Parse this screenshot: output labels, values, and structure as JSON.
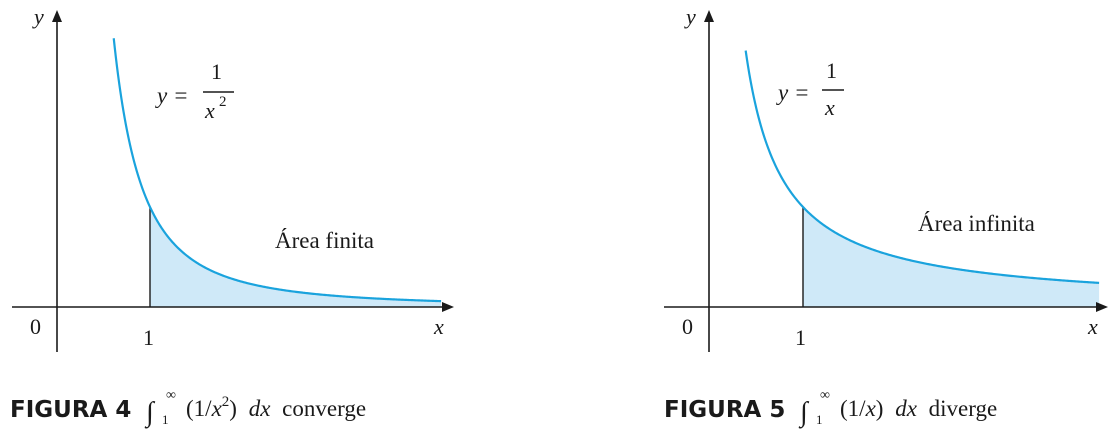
{
  "chart_data": [
    {
      "type": "area",
      "function": "1/x^2",
      "curve_label": {
        "lhs": "y =",
        "num": "1",
        "den_base": "x",
        "den_exp": "2"
      },
      "region_label": "Área finita",
      "shaded_from": 1,
      "xlabel": "x",
      "ylabel": "y",
      "tick_labels": {
        "origin": "0",
        "one": "1"
      },
      "caption": {
        "label": "FIGURA 4",
        "integrand_prefix": "(1/",
        "integrand_var": "x",
        "integrand_exp": "2",
        "integrand_suffix": ")",
        "dx": "dx",
        "verdict": "converge",
        "lower": "1",
        "upper": "∞"
      },
      "colors": {
        "curve": "#1aa3dd",
        "fill": "#cfe9f8"
      }
    },
    {
      "type": "area",
      "function": "1/x",
      "curve_label": {
        "lhs": "y =",
        "num": "1",
        "den_base": "x",
        "den_exp": ""
      },
      "region_label": "Área infinita",
      "shaded_from": 1,
      "xlabel": "x",
      "ylabel": "y",
      "tick_labels": {
        "origin": "0",
        "one": "1"
      },
      "caption": {
        "label": "FIGURA 5",
        "integrand_prefix": "(1/",
        "integrand_var": "x",
        "integrand_exp": "",
        "integrand_suffix": ")",
        "dx": "dx",
        "verdict": "diverge",
        "lower": "1",
        "upper": "∞"
      },
      "colors": {
        "curve": "#1aa3dd",
        "fill": "#cfe9f8"
      }
    }
  ]
}
